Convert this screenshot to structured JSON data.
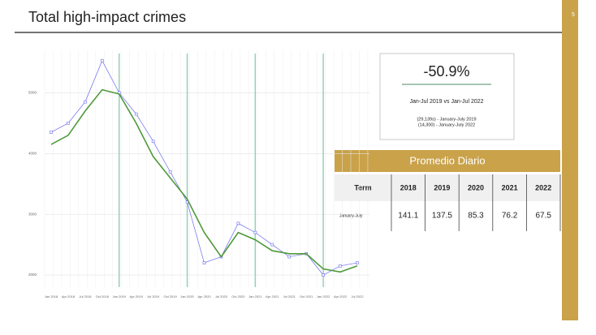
{
  "header": {
    "title": "Total high-impact crimes",
    "page": "5"
  },
  "summary": {
    "headline": "-50.9%",
    "comparison": "Jan-Jul 2019 vs Jan-Jul 2022",
    "notes": [
      "(29,139s) - January-July 2019",
      "(14,300) - January-July 2022"
    ]
  },
  "table": {
    "title": "Promedio Diario",
    "columns": [
      "Term",
      "2018",
      "2019",
      "2020",
      "2021",
      "2022"
    ],
    "rows": [
      [
        "January-July",
        141.1,
        137.5,
        85.3,
        76.2,
        67.5
      ]
    ]
  },
  "chart_data": {
    "type": "line",
    "categories": [
      "Jan 2018",
      "Apr 2018",
      "Jul 2018",
      "Oct 2018",
      "Jan 2019",
      "Apr 2019",
      "Jul 2019",
      "Oct 2019",
      "Jan 2020",
      "Apr 2020",
      "Jul 2020",
      "Oct 2020",
      "Jan 2021",
      "Apr 2021",
      "Jul 2021",
      "Oct 2021",
      "Jan 2022",
      "Apr 2022",
      "Jul 2022"
    ],
    "series": [
      {
        "color": "#6b6bf0",
        "values": [
          4350,
          4500,
          4850,
          5530,
          5000,
          4650,
          4200,
          3700,
          3200,
          2200,
          2300,
          2850,
          2700,
          2500,
          2300,
          2350,
          2000,
          2150,
          2200
        ]
      },
      {
        "color": "#4f9a3a",
        "values": [
          4150,
          4300,
          4700,
          5050,
          4980,
          4500,
          3950,
          3600,
          3250,
          2700,
          2300,
          2700,
          2580,
          2400,
          2350,
          2350,
          2100,
          2050,
          2150
        ]
      }
    ],
    "ylim": [
      1800,
      5700
    ],
    "yticks": [
      2000,
      3000,
      4000,
      5000
    ],
    "grid": true
  }
}
